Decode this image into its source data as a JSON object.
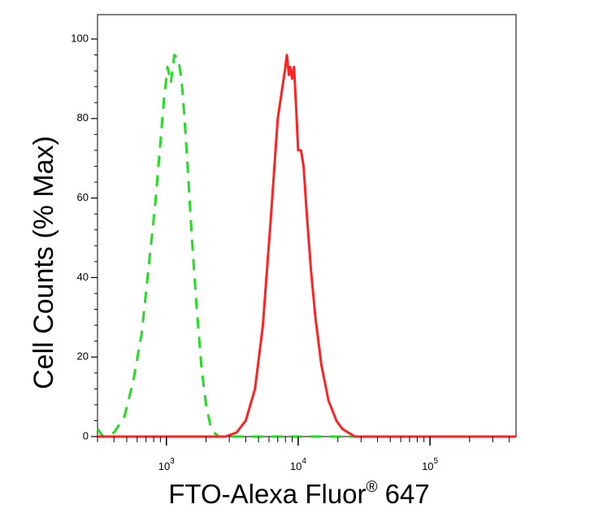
{
  "chart_data": {
    "type": "line",
    "title": "",
    "xlabel": "FTO-Alexa Fluor",
    "xlabel_superscript": "®",
    "xlabel_suffix": " 647",
    "ylabel": "Cell Counts (% Max)",
    "xscale": "log",
    "xlim": [
      300,
      450000
    ],
    "ylim": [
      0,
      100
    ],
    "grid": false,
    "x_tick_labels": [
      {
        "base": "10",
        "exp": "3",
        "value": 1000
      },
      {
        "base": "10",
        "exp": "4",
        "value": 10000
      },
      {
        "base": "10",
        "exp": "5",
        "value": 100000
      }
    ],
    "y_ticks": [
      0,
      20,
      40,
      60,
      80,
      100
    ],
    "series": [
      {
        "color": "#22dd22",
        "style": "dashed",
        "x": [
          300,
          330,
          400,
          480,
          560,
          650,
          730,
          820,
          900,
          960,
          1020,
          1080,
          1150,
          1230,
          1300,
          1360,
          1450,
          1560,
          1700,
          1850,
          2000,
          2150,
          2300,
          2500,
          3000,
          5000,
          20000,
          100000,
          450000
        ],
        "y": [
          2,
          0,
          1,
          5,
          14,
          26,
          42,
          58,
          74,
          85,
          93,
          89,
          96,
          95,
          90,
          82,
          68,
          50,
          32,
          17,
          8,
          3,
          1,
          0,
          0,
          0,
          0,
          0,
          0
        ]
      },
      {
        "color": "#ff2222",
        "style": "solid",
        "x": [
          300,
          2000,
          2800,
          3400,
          4000,
          4700,
          5400,
          6200,
          7000,
          7600,
          8000,
          8200,
          8500,
          8700,
          9000,
          9300,
          9600,
          10000,
          10500,
          11000,
          11500,
          12500,
          13500,
          15000,
          17000,
          19500,
          21500,
          24000,
          27000,
          32000,
          45000,
          100000,
          450000
        ],
        "y": [
          0,
          0,
          0,
          1,
          4,
          12,
          28,
          55,
          80,
          88,
          93,
          96,
          91,
          93,
          90,
          93,
          84,
          72,
          72,
          68,
          58,
          42,
          30,
          18,
          9,
          4,
          2,
          1,
          0,
          0,
          0,
          0,
          0
        ]
      }
    ]
  }
}
